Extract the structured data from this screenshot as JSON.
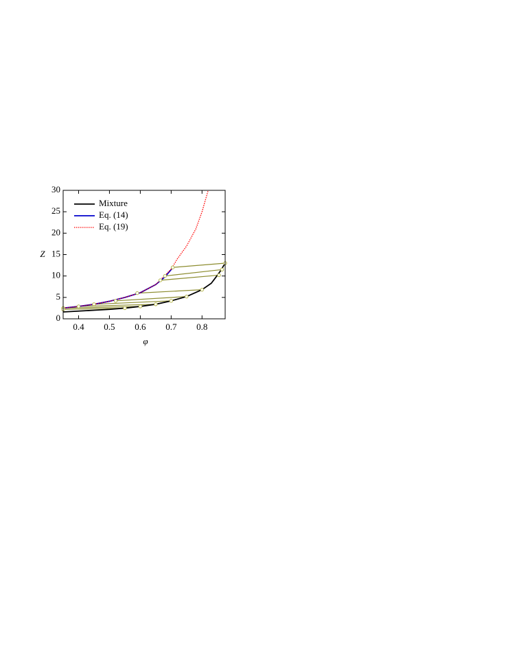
{
  "chart_data": {
    "type": "line",
    "xlabel": "φ",
    "ylabel": "Z",
    "xlim": [
      0.35,
      0.875
    ],
    "ylim": [
      0,
      30
    ],
    "xticks": [
      0.4,
      0.5,
      0.6,
      0.7,
      0.8
    ],
    "yticks": [
      0,
      5,
      10,
      15,
      20,
      25,
      30
    ],
    "legend": "upper left",
    "series": [
      {
        "name": "Mixture",
        "color": "#000000",
        "style": "solid",
        "x": [
          0.35,
          0.4,
          0.45,
          0.5,
          0.55,
          0.6,
          0.65,
          0.7,
          0.75,
          0.8,
          0.83,
          0.85,
          0.86,
          0.87,
          0.875
        ],
        "values": [
          1.6,
          1.8,
          2.0,
          2.2,
          2.5,
          2.9,
          3.4,
          4.2,
          5.2,
          6.8,
          8.3,
          10.2,
          11.2,
          12.4,
          13.0
        ]
      },
      {
        "name": "Eq. (14)",
        "color": "#0000cc",
        "style": "solid",
        "x": [
          0.35,
          0.4,
          0.45,
          0.5,
          0.55,
          0.6,
          0.65,
          0.68,
          0.7,
          0.705
        ],
        "values": [
          2.5,
          2.9,
          3.4,
          4.1,
          5.0,
          6.1,
          8.0,
          9.8,
          11.5,
          12.0
        ]
      },
      {
        "name": "Eq. (19)",
        "color": "#ff0000",
        "style": "dotted",
        "x": [
          0.35,
          0.4,
          0.45,
          0.5,
          0.55,
          0.6,
          0.65,
          0.7,
          0.72,
          0.75,
          0.78,
          0.8,
          0.82
        ],
        "values": [
          2.5,
          2.9,
          3.4,
          4.1,
          5.0,
          6.1,
          8.0,
          11.6,
          14.0,
          17.0,
          21.0,
          25.0,
          30.0
        ]
      }
    ],
    "tie_line_color": "#8c8c2e",
    "tie_lines": [
      {
        "x": [
          0.705,
          0.875
        ],
        "values": [
          12.0,
          13.0
        ]
      },
      {
        "x": [
          0.68,
          0.865
        ],
        "values": [
          10.0,
          11.5
        ]
      },
      {
        "x": [
          0.665,
          0.855
        ],
        "values": [
          9.0,
          10.2
        ]
      },
      {
        "x": [
          0.59,
          0.8
        ],
        "values": [
          6.0,
          6.8
        ]
      },
      {
        "x": [
          0.52,
          0.75
        ],
        "values": [
          4.2,
          5.2
        ]
      },
      {
        "x": [
          0.45,
          0.7
        ],
        "values": [
          3.4,
          4.2
        ]
      },
      {
        "x": [
          0.4,
          0.65
        ],
        "values": [
          2.9,
          3.4
        ]
      },
      {
        "x": [
          0.35,
          0.6
        ],
        "values": [
          2.5,
          2.9
        ]
      },
      {
        "x": [
          0.35,
          0.55
        ],
        "values": [
          2.2,
          2.5
        ]
      }
    ]
  }
}
